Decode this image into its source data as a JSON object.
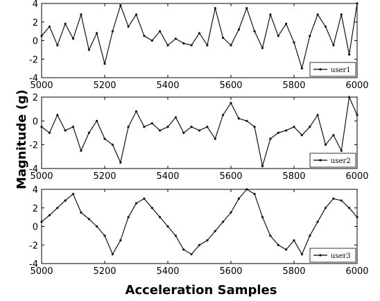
{
  "figure": {
    "ylabel": "Magnitude (g)",
    "xlabel": "Acceleration Samples"
  },
  "chart_data": [
    {
      "type": "line",
      "legend": "user1",
      "legend_position": "bottom-right",
      "xlim": [
        5000,
        6000
      ],
      "ylim": [
        -4,
        4
      ],
      "xticks": [
        5000,
        5200,
        5400,
        5600,
        5800,
        6000
      ],
      "yticks": [
        -4,
        -2,
        0,
        2,
        4
      ],
      "x": [
        5000,
        5025,
        5050,
        5075,
        5100,
        5125,
        5150,
        5175,
        5200,
        5225,
        5250,
        5275,
        5300,
        5325,
        5350,
        5375,
        5400,
        5425,
        5450,
        5475,
        5500,
        5525,
        5550,
        5575,
        5600,
        5625,
        5650,
        5675,
        5700,
        5725,
        5750,
        5775,
        5800,
        5825,
        5850,
        5875,
        5900,
        5925,
        5950,
        5975,
        6000
      ],
      "y": [
        0.5,
        1.5,
        -0.5,
        1.8,
        0.2,
        2.8,
        -1.0,
        0.8,
        -2.5,
        1.0,
        3.8,
        1.5,
        2.8,
        0.5,
        0.0,
        1.0,
        -0.5,
        0.2,
        -0.3,
        -0.5,
        0.8,
        -0.5,
        3.5,
        0.3,
        -0.5,
        1.2,
        3.5,
        1.0,
        -0.8,
        2.8,
        0.5,
        1.8,
        -0.2,
        -3.0,
        0.5,
        2.8,
        1.5,
        -0.5,
        2.8,
        -1.5,
        4.0
      ]
    },
    {
      "type": "line",
      "legend": "user2",
      "legend_position": "bottom-right",
      "xlim": [
        5000,
        6000
      ],
      "ylim": [
        -4,
        2
      ],
      "xticks": [
        5000,
        5200,
        5400,
        5600,
        5800,
        6000
      ],
      "yticks": [
        -4,
        -2,
        0,
        2
      ],
      "x": [
        5000,
        5025,
        5050,
        5075,
        5100,
        5125,
        5150,
        5175,
        5200,
        5225,
        5250,
        5275,
        5300,
        5325,
        5350,
        5375,
        5400,
        5425,
        5450,
        5475,
        5500,
        5525,
        5550,
        5575,
        5600,
        5625,
        5650,
        5675,
        5700,
        5725,
        5750,
        5775,
        5800,
        5825,
        5850,
        5875,
        5900,
        5925,
        5950,
        5975,
        6000
      ],
      "y": [
        -0.5,
        -1.0,
        0.5,
        -0.8,
        -0.5,
        -2.5,
        -1.0,
        0.0,
        -1.5,
        -2.0,
        -3.5,
        -0.5,
        0.8,
        -0.5,
        -0.2,
        -0.8,
        -0.5,
        0.3,
        -1.0,
        -0.5,
        -0.8,
        -0.5,
        -1.5,
        0.5,
        1.5,
        0.2,
        0.0,
        -0.5,
        -3.8,
        -1.5,
        -1.0,
        -0.8,
        -0.5,
        -1.2,
        -0.5,
        0.5,
        -2.0,
        -1.2,
        -2.5,
        2.0,
        0.5
      ]
    },
    {
      "type": "line",
      "legend": "user3",
      "legend_position": "bottom-right",
      "xlim": [
        5000,
        6000
      ],
      "ylim": [
        -4,
        4
      ],
      "xticks": [
        5000,
        5200,
        5400,
        5600,
        5800,
        6000
      ],
      "yticks": [
        -4,
        -2,
        0,
        2,
        4
      ],
      "x": [
        5000,
        5025,
        5050,
        5075,
        5100,
        5125,
        5150,
        5175,
        5200,
        5225,
        5250,
        5275,
        5300,
        5325,
        5350,
        5375,
        5400,
        5425,
        5450,
        5475,
        5500,
        5525,
        5550,
        5575,
        5600,
        5625,
        5650,
        5675,
        5700,
        5725,
        5750,
        5775,
        5800,
        5825,
        5850,
        5875,
        5900,
        5925,
        5950,
        5975,
        6000
      ],
      "y": [
        0.5,
        1.2,
        2.0,
        2.8,
        3.5,
        1.5,
        0.8,
        0.0,
        -1.0,
        -3.0,
        -1.5,
        1.0,
        2.5,
        3.0,
        2.0,
        1.0,
        0.0,
        -1.0,
        -2.5,
        -3.0,
        -2.0,
        -1.5,
        -0.5,
        0.5,
        1.5,
        3.0,
        4.0,
        3.5,
        1.0,
        -1.0,
        -2.0,
        -2.5,
        -1.5,
        -3.0,
        -1.0,
        0.5,
        2.0,
        3.0,
        2.8,
        2.0,
        1.0
      ]
    }
  ]
}
